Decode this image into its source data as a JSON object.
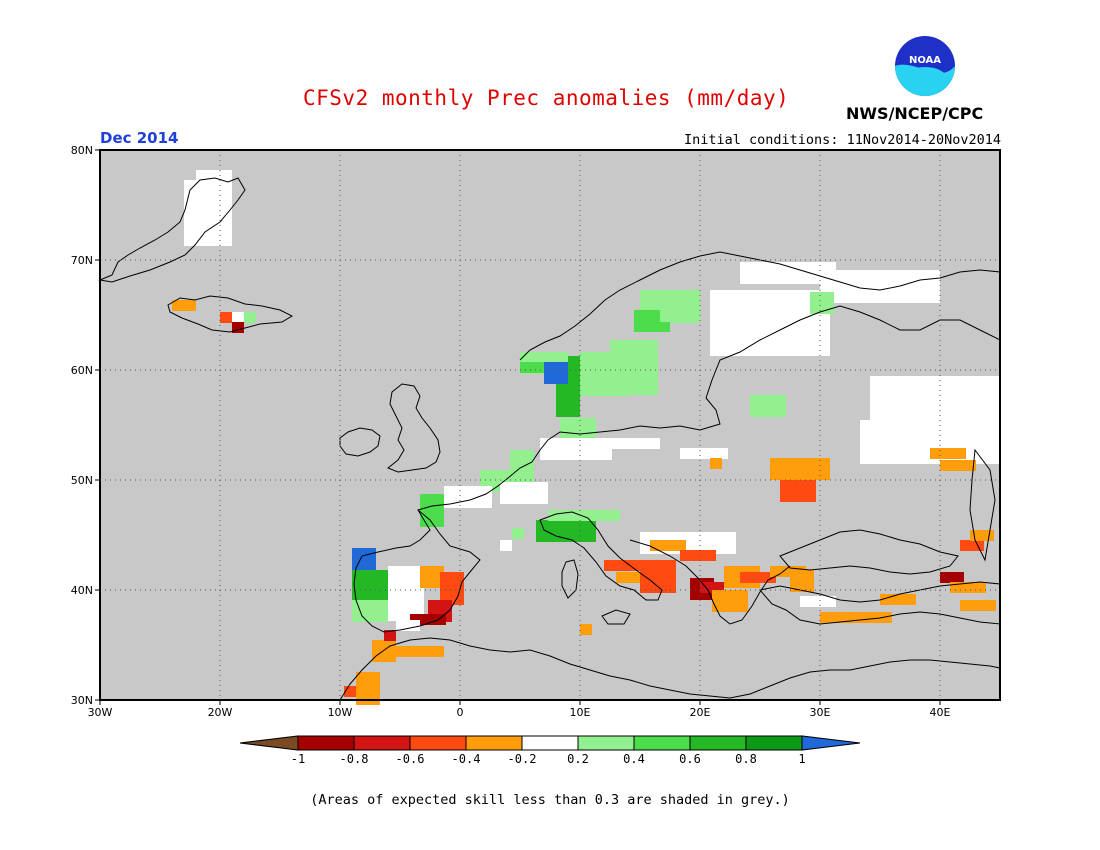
{
  "header": {
    "title": "CFSv2 monthly Prec anomalies (mm/day)",
    "period": "Dec 2014",
    "initial_conditions": "Initial conditions: 11Nov2014-20Nov2014",
    "organization": "NWS/NCEP/CPC",
    "logo_text": "NOAA"
  },
  "colors": {
    "title": "#e00000",
    "period": "#1f3fd8",
    "land_grey": "#c8c8c8",
    "coast": "#000000"
  },
  "map": {
    "lon_ticks": [
      "30W",
      "20W",
      "10W",
      "0",
      "10E",
      "20E",
      "30E",
      "40E"
    ],
    "lat_ticks": [
      "80N",
      "70N",
      "60N",
      "50N",
      "40N",
      "30N"
    ],
    "grid": true,
    "grid_style": "dotted"
  },
  "legend": {
    "tick_labels": [
      "-1",
      "-0.8",
      "-0.6",
      "-0.4",
      "-0.2",
      "0.2",
      "0.4",
      "0.6",
      "0.8",
      "1"
    ],
    "bins": [
      {
        "range": "< -1",
        "color": "#7b4a24"
      },
      {
        "range": "-1 to -0.8",
        "color": "#a50000"
      },
      {
        "range": "-0.8 to -0.6",
        "color": "#d21414"
      },
      {
        "range": "-0.6 to -0.4",
        "color": "#ff4a12"
      },
      {
        "range": "-0.4 to -0.2",
        "color": "#ff9d0c"
      },
      {
        "range": "-0.2 to 0.2",
        "color": "#ffffff"
      },
      {
        "range": "0.2 to 0.4",
        "color": "#93f08f"
      },
      {
        "range": "0.4 to 0.6",
        "color": "#4cdc4c"
      },
      {
        "range": "0.6 to 0.8",
        "color": "#25b825"
      },
      {
        "range": "0.8 to 1",
        "color": "#0c9a18"
      },
      {
        "range": "> 1",
        "color": "#2069d8"
      }
    ]
  },
  "footnote": "(Areas of expected skill less than 0.3 are shaded in grey.)"
}
